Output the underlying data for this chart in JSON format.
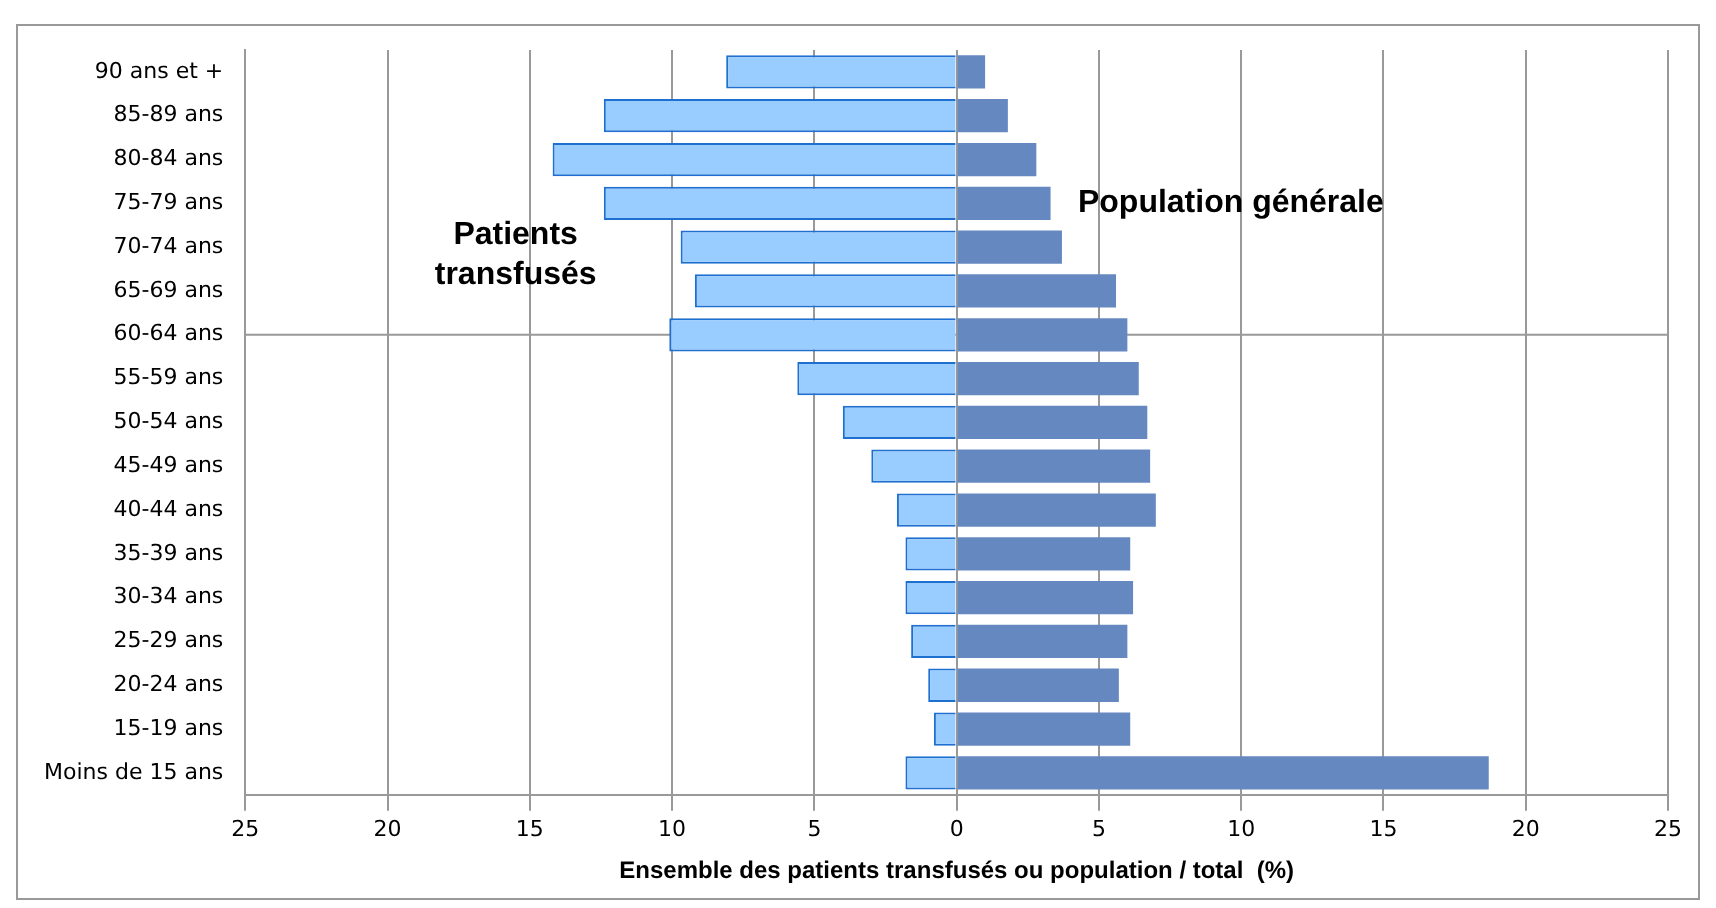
{
  "chart_data": {
    "type": "bar",
    "orientation": "horizontal",
    "stacked": true,
    "xlabel": "Ensemble des patients transfusés ou population / total  (%)",
    "categories": [
      "90 ans et +",
      "85-89 ans",
      "80-84 ans",
      "75-79 ans",
      "70-74 ans",
      "65-69 ans",
      "60-64 ans",
      "55-59 ans",
      "50-54 ans",
      "45-49 ans",
      "40-44 ans",
      "35-39 ans",
      "30-34 ans",
      "25-29 ans",
      "20-24 ans",
      "15-19 ans",
      "Moins de 15 ans"
    ],
    "series": [
      {
        "name": "Patients transfusés",
        "color": "#99ccff",
        "values": [
          -8.1,
          -12.4,
          -14.2,
          -12.4,
          -9.7,
          -9.2,
          -10.1,
          -5.6,
          -4.0,
          -3.0,
          -2.1,
          -1.8,
          -1.8,
          -1.6,
          -1.0,
          -0.8,
          -1.8
        ]
      },
      {
        "name": "Population générale",
        "color": "#6688c0",
        "values": [
          1.0,
          1.8,
          2.8,
          3.3,
          3.7,
          5.6,
          6.0,
          6.4,
          6.7,
          6.8,
          7.0,
          6.1,
          6.2,
          6.0,
          5.7,
          6.1,
          18.7
        ]
      }
    ],
    "xlim": [
      -25,
      25
    ],
    "xticks": [
      {
        "value": -25,
        "label": "25"
      },
      {
        "value": -20,
        "label": "20"
      },
      {
        "value": -15,
        "label": "15"
      },
      {
        "value": -10,
        "label": "10"
      },
      {
        "value": -5,
        "label": "5"
      },
      0,
      5,
      10,
      15,
      20,
      25
    ],
    "ref_lines": [
      {
        "axis": "y",
        "value": "60-64 ans",
        "color": "#999999"
      }
    ],
    "grid": "x",
    "legend": false
  }
}
